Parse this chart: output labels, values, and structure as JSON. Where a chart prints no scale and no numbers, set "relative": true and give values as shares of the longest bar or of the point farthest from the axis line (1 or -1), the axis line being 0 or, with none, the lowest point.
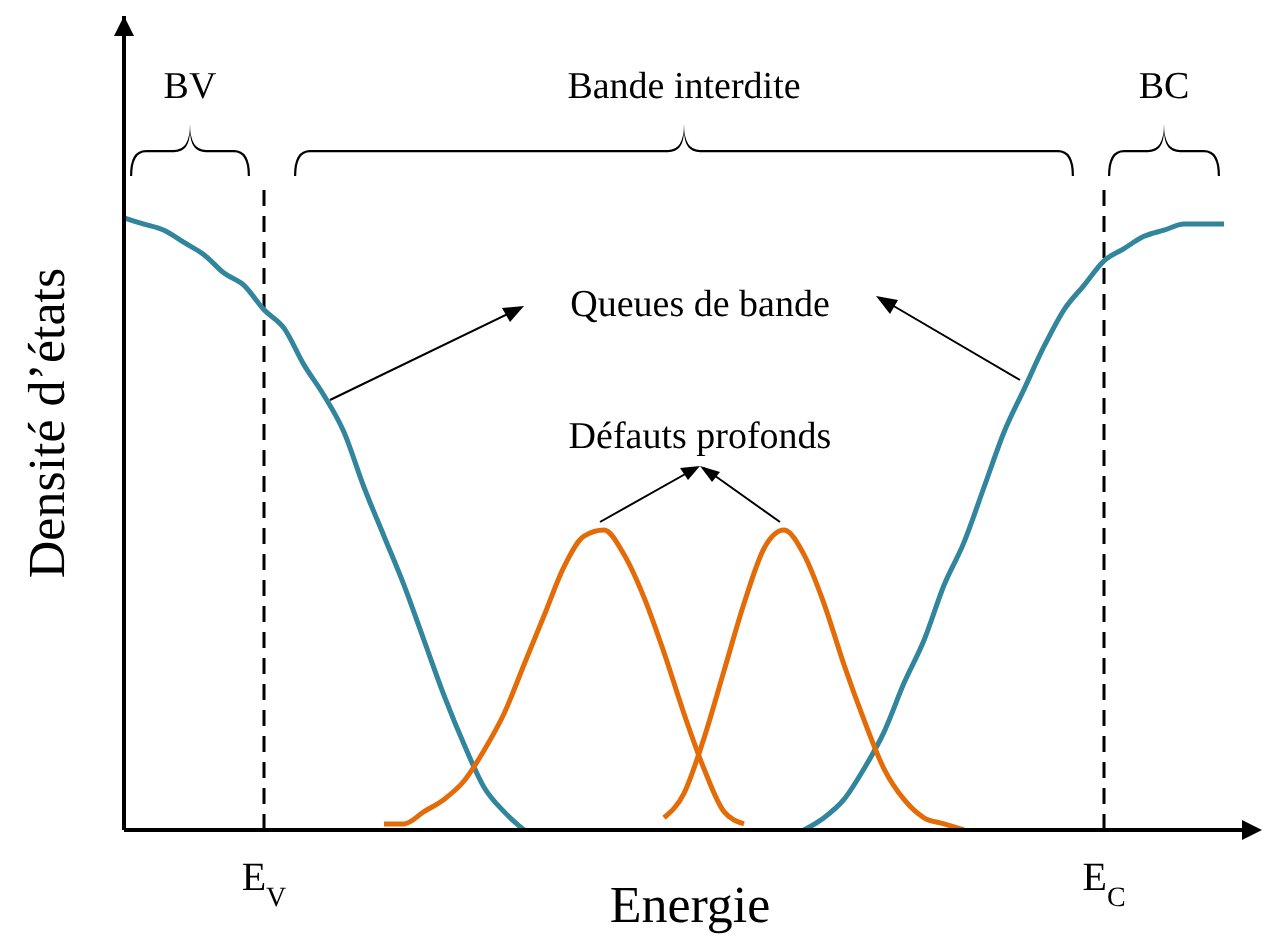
{
  "chart_data": {
    "type": "line",
    "relative": true,
    "xlabel": "Energie",
    "ylabel": "Densité d’états",
    "categories": [
      null,
      null,
      null,
      null,
      null,
      null,
      null,
      "E$_{V}$",
      null,
      null,
      null,
      null,
      null,
      null,
      null,
      null,
      null,
      null,
      null,
      null,
      null,
      null,
      null,
      null,
      null,
      null,
      null,
      null,
      null,
      null,
      null,
      null,
      null,
      null,
      null,
      null,
      null,
      null,
      null,
      null,
      null,
      null,
      null,
      null,
      null,
      null,
      null,
      null,
      null,
      "E$_{C}$",
      null,
      null,
      null,
      null,
      null,
      null
    ],
    "tick_labels": "x",
    "grid": false,
    "legend": false,
    "marker": "none",
    "series": [
      {
        "color": "#31859c",
        "values": [
          1.0,
          0.99,
          0.98,
          0.96,
          0.94,
          0.91,
          0.89,
          0.85,
          0.82,
          0.76,
          0.71,
          0.65,
          0.56,
          0.48,
          0.4,
          0.31,
          0.22,
          0.14,
          0.07,
          0.03,
          0,
          null,
          null,
          null,
          null,
          null,
          null,
          null,
          null,
          null,
          null,
          null,
          null,
          null,
          0,
          0.02,
          0.05,
          0.1,
          0.16,
          0.24,
          0.31,
          0.4,
          0.47,
          0.56,
          0.65,
          0.72,
          0.79,
          0.85,
          0.89,
          0.93,
          0.95,
          0.97,
          0.98,
          0.99,
          0.99,
          0.99
        ]
      },
      {
        "color": "#e36c09",
        "values": [
          null,
          null,
          null,
          null,
          null,
          null,
          null,
          null,
          null,
          null,
          null,
          null,
          null,
          0.01,
          0.01,
          0.03,
          0.05,
          0.08,
          0.13,
          0.19,
          0.27,
          0.35,
          0.43,
          0.48,
          0.49,
          0.45,
          0.38,
          0.29,
          0.19,
          0.1,
          0.03,
          0.01,
          null,
          null,
          null,
          null,
          null,
          null,
          null,
          null,
          null,
          null,
          null,
          null,
          null,
          null,
          null,
          null,
          null,
          null,
          null,
          null,
          null,
          null,
          null,
          null
        ]
      },
      {
        "color": "#e36c09",
        "values": [
          null,
          null,
          null,
          null,
          null,
          null,
          null,
          null,
          null,
          null,
          null,
          null,
          null,
          null,
          null,
          null,
          null,
          null,
          null,
          null,
          null,
          null,
          null,
          null,
          null,
          null,
          null,
          0.02,
          0.06,
          0.15,
          0.26,
          0.37,
          0.46,
          0.49,
          0.45,
          0.37,
          0.27,
          0.18,
          0.1,
          0.05,
          0.02,
          0.01,
          0.0,
          null,
          null,
          null,
          null,
          null,
          null,
          null,
          null,
          null,
          null,
          null,
          null,
          null
        ]
      }
    ],
    "ref_lines": [
      {
        "axis": "x",
        "value": "E$_{V}$",
        "color": "#000000",
        "line_style": "dashed"
      },
      {
        "axis": "x",
        "value": "E$_{C}$",
        "color": "#000000",
        "line_style": "dashed"
      }
    ],
    "annotations": [
      "BV",
      "Bande interdite",
      "BC",
      "Queues de bande",
      "Défauts profonds"
    ]
  }
}
